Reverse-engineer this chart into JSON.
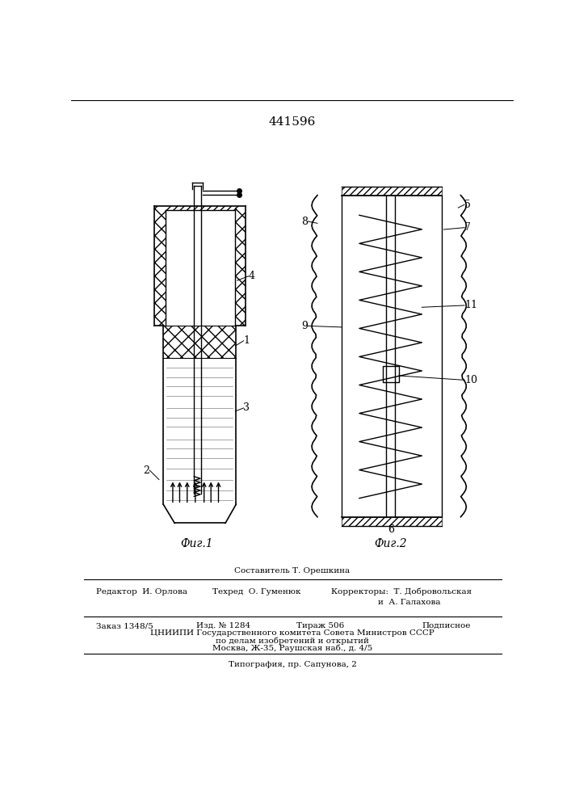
{
  "title": "441596",
  "fig1_label": "Фиг.1",
  "fig2_label": "Фиг.2",
  "bottom_text_line1": "Составитель Т. Орешкина",
  "bottom_text_line2a": "Редактор  И. Орлова",
  "bottom_text_line2b": "Техред  О. Гуменюк",
  "bottom_text_line2c": "Корректоры:  Т. Добровольская",
  "bottom_text_line2d": "и  А. Галахова",
  "bottom_text_line4": "Заказ 1348/5",
  "bottom_text_line4b": "Изд. № 1284",
  "bottom_text_line4c": "Тираж 506",
  "bottom_text_line4d": "Подписное",
  "bottom_text_line5": "ЦНИИПИ Государственного комитета Совета Министров СССР",
  "bottom_text_line6": "по делам изобретений и открытий",
  "bottom_text_line7": "Москва, Ж-35, Раушская наб., д. 4/5",
  "bottom_text_line8": "Типография, пр. Сапунова, 2",
  "bg_color": "#ffffff",
  "line_color": "#000000"
}
